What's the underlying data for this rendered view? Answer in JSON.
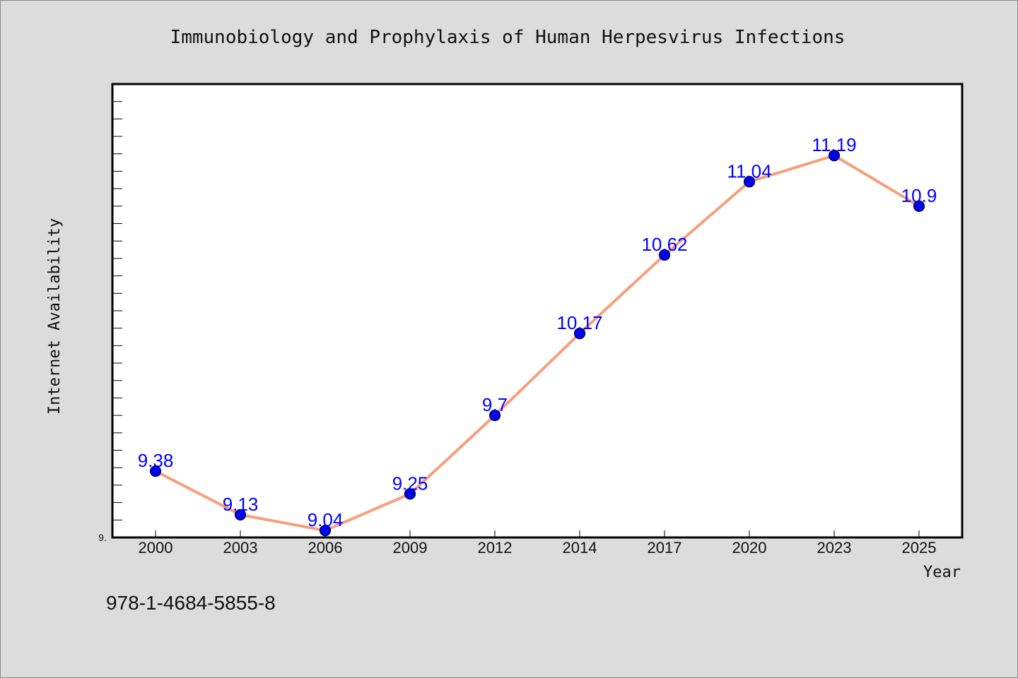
{
  "chart_data": {
    "type": "line",
    "title": "Immunobiology and Prophylaxis of Human Herpesvirus Infections",
    "xlabel": "Year",
    "ylabel": "Internet Availability",
    "x": [
      "2000",
      "2003",
      "2006",
      "2009",
      "2012",
      "2014",
      "2017",
      "2020",
      "2023",
      "2025"
    ],
    "series": [
      {
        "values": [
          9.38,
          9.13,
          9.04,
          9.25,
          9.7,
          10.17,
          10.62,
          11.04,
          11.19,
          10.9
        ],
        "labels": [
          "9.38",
          "9.13",
          "9.04",
          "9.25",
          "9.7",
          "10.17",
          "10.62",
          "11.04",
          "11.19",
          "10.9"
        ]
      }
    ],
    "ylim": [
      9.0,
      11.6
    ],
    "y_tick_label": "9.",
    "grid": false,
    "legend": "none",
    "colors": {
      "line": "#f4a07c",
      "marker": "#0000ee",
      "data_label": "#0000ff",
      "plot_background": "#ffffff",
      "page_background": "#dcdcdc"
    }
  },
  "footer": {
    "isbn": "978-1-4684-5855-8"
  }
}
